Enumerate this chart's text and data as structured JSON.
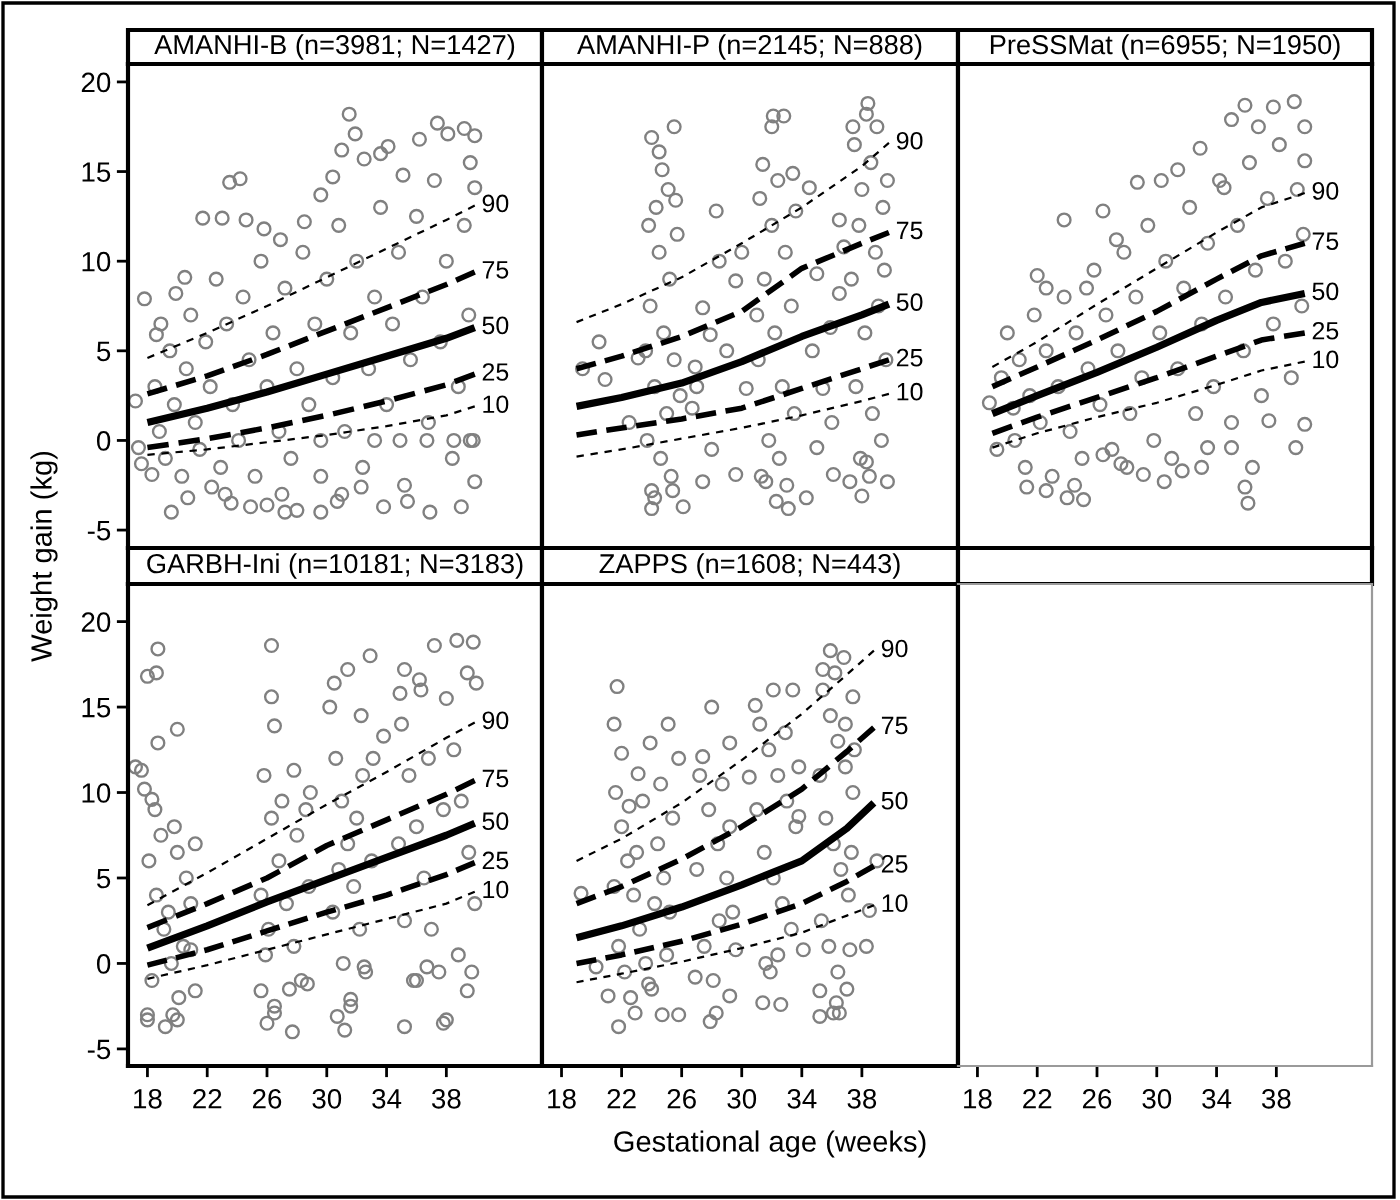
{
  "chart_data": [
    {
      "type": "scatter",
      "title": "AMANHI-B (n=3981; N=1427)",
      "ylabel": "Weight gain (kg)",
      "xlim": [
        16.7,
        44.4
      ],
      "ylim": [
        -6,
        21
      ],
      "xticks": [
        18,
        22,
        26,
        30,
        34,
        38
      ],
      "yticks": [
        -5,
        0,
        5,
        10,
        15,
        20
      ],
      "tick_labels": "y",
      "series": [
        {
          "type": "scatter",
          "color": "#808080",
          "marker": "circle",
          "x": [
            17.2,
            17.4,
            17.6,
            17.8,
            18.3,
            18.6,
            18.9,
            19.6,
            19.9,
            20.5,
            20.7,
            21.7,
            22.3,
            23.0,
            23.2,
            23.5,
            23.6,
            24.2,
            24.6,
            24.9,
            25.8,
            26.0,
            26.9,
            27.2,
            28.0,
            28.5,
            29.6,
            29.6,
            29.6,
            30.4,
            30.7,
            31.0,
            31.5,
            31.9,
            32.3,
            32.5,
            33.2,
            33.6,
            33.8,
            34.1,
            34.9,
            35.1,
            35.4,
            36.2,
            36.7,
            36.9,
            37.4,
            38.1,
            38.5,
            39.0,
            39.2,
            39.6,
            39.9,
            39.9,
            39.9,
            18.5,
            18.8,
            19.2,
            19.5,
            19.8,
            20.3,
            20.6,
            20.9,
            21.2,
            21.5,
            21.9,
            22.2,
            22.6,
            22.9,
            23.3,
            23.7,
            24.1,
            24.4,
            24.8,
            25.2,
            25.6,
            26.0,
            26.4,
            26.8,
            27.2,
            27.6,
            28.0,
            28.4,
            28.8,
            29.2,
            29.6,
            30.0,
            30.4,
            30.8,
            31.2,
            31.6,
            32.0,
            32.4,
            32.8,
            33.2,
            33.6,
            34.0,
            34.4,
            34.8,
            35.2,
            35.6,
            36.0,
            36.4,
            36.8,
            37.2,
            37.6,
            38.0,
            38.4,
            38.8,
            39.2,
            39.5,
            39.8,
            39.6,
            31.0,
            27.0
          ],
          "values": [
            2.2,
            -0.4,
            -1.3,
            7.9,
            -1.9,
            5.9,
            6.5,
            -4.0,
            8.2,
            9.1,
            -3.2,
            12.4,
            -2.6,
            12.4,
            -3.0,
            14.4,
            -3.5,
            14.6,
            12.3,
            -3.7,
            11.8,
            -3.6,
            11.2,
            -4.0,
            -3.9,
            12.2,
            13.7,
            -4.0,
            0,
            14.7,
            -3.4,
            16.2,
            18.2,
            17.1,
            -2.6,
            15.7,
            0,
            16.0,
            -3.7,
            16.4,
            0,
            14.8,
            -3.4,
            16.8,
            0,
            -4.0,
            17.7,
            17.1,
            0,
            -3.7,
            17.4,
            0,
            17.0,
            14.1,
            -2.3,
            3.0,
            0.5,
            -1.0,
            5.0,
            2.0,
            -2.0,
            4.0,
            7.0,
            1.0,
            -0.5,
            5.5,
            3.0,
            9.0,
            -1.5,
            6.5,
            2.0,
            0.0,
            8.0,
            4.5,
            -2.0,
            10.0,
            3.0,
            6.0,
            0.5,
            8.5,
            -1.0,
            4.0,
            10.5,
            2.0,
            6.5,
            -2.0,
            9.0,
            3.5,
            12.0,
            0.5,
            6.0,
            10.0,
            -1.5,
            4.0,
            8.0,
            13.0,
            2.0,
            6.5,
            10.5,
            -2.5,
            4.5,
            12.5,
            8.0,
            1.0,
            14.5,
            5.5,
            10.0,
            -1.0,
            3.0,
            12.0,
            7.0,
            0.0,
            15.5,
            -3.0,
            -3.0
          ]
        },
        {
          "type": "line",
          "name": "90",
          "color": "#000000",
          "line_style": "dotted",
          "x": [
            18,
            22,
            26,
            30,
            34,
            38,
            39.9
          ],
          "values": [
            4.6,
            6.0,
            7.5,
            9.1,
            10.7,
            12.3,
            13.1
          ]
        },
        {
          "type": "line",
          "name": "75",
          "color": "#000000",
          "line_style": "dashed",
          "x": [
            18,
            22,
            26,
            30,
            34,
            38,
            39.9
          ],
          "values": [
            2.6,
            3.6,
            4.8,
            6.1,
            7.4,
            8.7,
            9.4
          ]
        },
        {
          "type": "line",
          "name": "50",
          "color": "#000000",
          "line_style": "solid",
          "x": [
            18,
            22,
            26,
            30,
            34,
            38,
            39.9
          ],
          "values": [
            1.0,
            1.8,
            2.7,
            3.7,
            4.7,
            5.7,
            6.3
          ]
        },
        {
          "type": "line",
          "name": "25",
          "color": "#000000",
          "line_style": "dashed",
          "x": [
            18,
            22,
            26,
            30,
            34,
            38,
            39.9
          ],
          "values": [
            -0.4,
            0.1,
            0.7,
            1.4,
            2.2,
            3.1,
            3.7
          ]
        },
        {
          "type": "line",
          "name": "10",
          "color": "#000000",
          "line_style": "dotted",
          "x": [
            18,
            22,
            26,
            30,
            34,
            38,
            39.9
          ],
          "values": [
            -0.8,
            -0.5,
            -0.1,
            0.3,
            0.8,
            1.4,
            1.9
          ]
        }
      ]
    },
    {
      "type": "scatter",
      "title": "AMANHI-P (n=2145; N=888)",
      "xlim": [
        16.7,
        44.4
      ],
      "ylim": [
        -6,
        21
      ],
      "xticks": [
        18,
        22,
        26,
        30,
        34,
        38
      ],
      "yticks": [
        -5,
        0,
        5,
        10,
        15,
        20
      ],
      "tick_labels": false,
      "series": [
        {
          "type": "scatter",
          "color": "#808080",
          "marker": "circle",
          "x": [
            19.4,
            20.9,
            23.1,
            24.0,
            24.5,
            24.7,
            25.1,
            25.5,
            25.6,
            24.0,
            24.2,
            25.4,
            26.1,
            28.3,
            28.5,
            29.6,
            27.4,
            26.9,
            26.7,
            27.4,
            29.6,
            30.3,
            27.9,
            32.1,
            32.8,
            32.0,
            31.4,
            33.4,
            32.3,
            33.1,
            34.3,
            31.6,
            35.0,
            35.9,
            36.5,
            35.4,
            36.1,
            35.0,
            36.5,
            34.5,
            38.4,
            38.3,
            37.4,
            39.0,
            39.7,
            38.0,
            39.7,
            37.2,
            38.3,
            23.8,
            24.5,
            25.2,
            23.9,
            24.8,
            25.5,
            24.2,
            25.0,
            23.7,
            24.6,
            25.3,
            24.0,
            25.7,
            24.3,
            25.9,
            23.6,
            31.2,
            32.0,
            32.9,
            31.5,
            33.3,
            32.2,
            31.1,
            32.7,
            33.5,
            31.8,
            32.5,
            31.3,
            33.0,
            32.4,
            33.6,
            31.0,
            37.5,
            38.6,
            39.4,
            37.8,
            38.9,
            37.3,
            39.1,
            38.2,
            39.6,
            37.6,
            38.7,
            39.3,
            37.9,
            38.5,
            38.0,
            39.5,
            27.0,
            28.0,
            29.0,
            30.0,
            34.7,
            36.0,
            36.8,
            20.5,
            22.5
          ],
          "values": [
            4.0,
            3.4,
            4.6,
            16.9,
            16.1,
            15.1,
            14.0,
            17.5,
            13.4,
            -3.8,
            -3.2,
            -2.8,
            -3.7,
            12.8,
            10.0,
            8.9,
            7.4,
            4.1,
            1.8,
            -2.3,
            -1.9,
            2.9,
            5.9,
            18.1,
            18.1,
            17.5,
            15.4,
            14.9,
            -3.4,
            -3.8,
            -3.2,
            -2.3,
            9.3,
            6.3,
            8.2,
            2.9,
            -1.9,
            -0.4,
            12.3,
            14.1,
            18.8,
            18.2,
            17.5,
            17.5,
            14.5,
            -3.1,
            -2.3,
            -2.3,
            -1.2,
            12.0,
            10.5,
            9.0,
            7.5,
            6.0,
            4.5,
            3.0,
            1.5,
            0.0,
            -1.0,
            -2.0,
            -2.8,
            11.5,
            13.0,
            2.5,
            5.0,
            13.5,
            12.0,
            10.5,
            9.0,
            7.5,
            6.0,
            4.5,
            3.0,
            1.5,
            0.0,
            -1.0,
            -2.0,
            -2.5,
            14.5,
            12.8,
            7.0,
            16.5,
            15.5,
            13.0,
            12.0,
            10.5,
            9.0,
            7.5,
            6.0,
            4.5,
            3.0,
            1.5,
            0.0,
            -1.0,
            -2.0,
            14.0,
            9.5,
            3.0,
            -0.5,
            5.0,
            10.5,
            5.0,
            1.0,
            10.8,
            5.5,
            1.0
          ]
        },
        {
          "type": "line",
          "name": "90",
          "color": "#000000",
          "line_style": "dotted",
          "x": [
            19,
            22,
            26,
            30,
            34,
            38,
            39.8
          ],
          "values": [
            6.6,
            7.6,
            9.1,
            11.0,
            13.0,
            15.3,
            16.6
          ]
        },
        {
          "type": "line",
          "name": "75",
          "color": "#000000",
          "line_style": "dashed",
          "x": [
            19,
            22,
            26,
            30,
            34,
            38,
            39.8
          ],
          "values": [
            4.0,
            4.7,
            5.8,
            7.2,
            9.6,
            11.0,
            11.6
          ]
        },
        {
          "type": "line",
          "name": "50",
          "color": "#000000",
          "line_style": "solid",
          "x": [
            19,
            22,
            26,
            30,
            34,
            38,
            39.8
          ],
          "values": [
            1.9,
            2.4,
            3.2,
            4.4,
            5.8,
            7.0,
            7.6
          ]
        },
        {
          "type": "line",
          "name": "25",
          "color": "#000000",
          "line_style": "dashed",
          "x": [
            19,
            22,
            26,
            30,
            34,
            38,
            39.8
          ],
          "values": [
            0.3,
            0.7,
            1.2,
            1.8,
            2.9,
            4.0,
            4.5
          ]
        },
        {
          "type": "line",
          "name": "10",
          "color": "#000000",
          "line_style": "dotted",
          "x": [
            19,
            22,
            26,
            30,
            34,
            38,
            39.8
          ],
          "values": [
            -0.9,
            -0.5,
            0.1,
            0.7,
            1.4,
            2.2,
            2.6
          ]
        }
      ]
    },
    {
      "type": "scatter",
      "title": "PreSSMat (n=6955; N=1950)",
      "xlim": [
        16.7,
        44.4
      ],
      "ylim": [
        -6,
        21
      ],
      "xticks": [
        18,
        22,
        26,
        30,
        34,
        38
      ],
      "yticks": [
        -5,
        0,
        5,
        10,
        15,
        20
      ],
      "tick_labels": false,
      "series": [
        {
          "type": "scatter",
          "color": "#808080",
          "marker": "circle",
          "x": [
            18.8,
            20.4,
            22.0,
            22.6,
            23.8,
            25.3,
            26.4,
            27.3,
            28.7,
            30.3,
            31.4,
            32.9,
            34.5,
            35.0,
            35.9,
            36.8,
            37.8,
            39.2,
            39.9,
            39.9,
            21.3,
            22.6,
            24.0,
            25.1,
            26.4,
            27.6,
            29.1,
            30.5,
            31.7,
            33.4,
            35.0,
            35.9,
            36.1,
            37.5,
            39.3,
            39.9,
            19.3,
            19.6,
            20.0,
            20.5,
            20.8,
            21.2,
            21.5,
            21.8,
            22.2,
            22.6,
            23.0,
            23.4,
            23.8,
            24.2,
            24.6,
            25.0,
            25.4,
            25.8,
            26.2,
            26.6,
            27.0,
            27.4,
            27.8,
            28.2,
            28.6,
            29.0,
            29.4,
            29.8,
            30.2,
            30.6,
            31.0,
            31.4,
            31.8,
            32.2,
            32.6,
            33.0,
            33.4,
            33.8,
            34.2,
            34.6,
            35.0,
            35.4,
            35.8,
            36.2,
            36.6,
            37.0,
            37.4,
            37.8,
            38.2,
            38.6,
            39.0,
            39.4,
            39.7,
            39.8,
            36.4,
            33.0,
            28.0,
            24.5
          ],
          "values": [
            2.1,
            1.8,
            9.2,
            8.5,
            12.3,
            8.5,
            12.8,
            11.2,
            14.4,
            14.5,
            15.1,
            16.3,
            14.1,
            17.9,
            18.7,
            17.5,
            18.6,
            18.9,
            17.5,
            15.6,
            -2.6,
            -2.8,
            -3.2,
            -3.3,
            -0.8,
            -1.3,
            -1.9,
            -2.3,
            -1.7,
            -0.4,
            -0.4,
            -2.6,
            -3.5,
            1.1,
            -0.4,
            0.9,
            -0.5,
            3.5,
            6.0,
            0.0,
            4.5,
            -1.5,
            2.5,
            7.0,
            1.0,
            5.0,
            -2.0,
            3.0,
            8.0,
            0.5,
            6.0,
            -1.0,
            4.0,
            9.5,
            2.0,
            7.0,
            -0.5,
            5.0,
            10.5,
            1.5,
            8.0,
            3.5,
            12.0,
            0.0,
            6.0,
            10.0,
            -1.0,
            4.0,
            8.5,
            13.0,
            1.5,
            6.5,
            11.0,
            3.0,
            14.5,
            8.0,
            1.0,
            12.0,
            5.0,
            15.5,
            9.5,
            2.5,
            13.5,
            6.5,
            16.5,
            10.0,
            3.5,
            14.0,
            7.5,
            11.5,
            -1.5,
            -1.5,
            -1.5,
            -2.5
          ]
        },
        {
          "type": "line",
          "name": "90",
          "color": "#000000",
          "line_style": "dotted",
          "x": [
            19,
            22,
            26,
            30,
            34,
            37,
            39.9
          ],
          "values": [
            4.1,
            5.5,
            7.6,
            9.6,
            11.6,
            13.0,
            13.8
          ]
        },
        {
          "type": "line",
          "name": "75",
          "color": "#000000",
          "line_style": "dashed",
          "x": [
            19,
            22,
            26,
            30,
            34,
            37,
            39.9
          ],
          "values": [
            3.0,
            4.1,
            5.6,
            7.2,
            9.0,
            10.3,
            11.0
          ]
        },
        {
          "type": "line",
          "name": "50",
          "color": "#000000",
          "line_style": "solid",
          "x": [
            19,
            22,
            26,
            30,
            34,
            37,
            39.9
          ],
          "values": [
            1.5,
            2.5,
            3.8,
            5.2,
            6.7,
            7.7,
            8.2
          ]
        },
        {
          "type": "line",
          "name": "25",
          "color": "#000000",
          "line_style": "dashed",
          "x": [
            19,
            22,
            26,
            30,
            34,
            37,
            39.9
          ],
          "values": [
            0.4,
            1.3,
            2.4,
            3.5,
            4.7,
            5.6,
            6.0
          ]
        },
        {
          "type": "line",
          "name": "10",
          "color": "#000000",
          "line_style": "dotted",
          "x": [
            19,
            22,
            26,
            30,
            34,
            37,
            39.9
          ],
          "values": [
            -0.4,
            0.4,
            1.3,
            2.1,
            3.1,
            3.9,
            4.4
          ]
        }
      ]
    },
    {
      "type": "scatter",
      "title": "GARBH-Ini (n=10181; N=3183)",
      "xlim": [
        16.7,
        44.4
      ],
      "ylim": [
        -6,
        22.2
      ],
      "xticks": [
        18,
        22,
        26,
        30,
        34,
        38
      ],
      "yticks": [
        -5,
        0,
        5,
        10,
        15,
        20
      ],
      "series": [
        {
          "type": "scatter",
          "color": "#808080",
          "marker": "circle",
          "x": [
            18.7,
            18.0,
            18.6,
            20.0,
            18.7,
            17.6,
            17.2,
            17.8,
            18.3,
            19.8,
            21.2,
            18.0,
            19.2,
            20.0,
            21.2,
            20.9,
            26.3,
            26.3,
            26.5,
            27.8,
            28.9,
            26.0,
            26.5,
            27.7,
            28.7,
            25.6,
            31.4,
            32.9,
            30.5,
            32.3,
            33.8,
            30.7,
            31.2,
            31.6,
            32.5,
            37.2,
            38.7,
            39.8,
            35.2,
            34.9,
            36.2,
            40.0,
            35.2,
            37.8,
            38.0,
            39.4,
            36.0,
            36.7,
            18.1,
            18.6,
            19.1,
            19.6,
            20.1,
            20.6,
            18.3,
            18.9,
            19.4,
            20.4,
            20.9,
            18.0,
            19.7,
            18.5,
            20.0,
            25.8,
            26.3,
            26.8,
            27.3,
            27.8,
            28.3,
            28.8,
            25.9,
            26.5,
            27.0,
            28.0,
            28.6,
            25.6,
            27.5,
            26.1,
            30.2,
            30.6,
            31.0,
            31.4,
            31.8,
            32.2,
            32.6,
            33.0,
            30.4,
            31.1,
            31.6,
            32.4,
            30.8,
            32.0,
            33.1,
            35.0,
            35.5,
            36.0,
            36.5,
            37.0,
            37.5,
            38.0,
            38.5,
            39.0,
            39.5,
            39.9,
            35.2,
            35.8,
            36.8,
            37.8,
            38.8,
            39.4,
            34.8,
            36.3,
            39.7
          ],
          "values": [
            18.4,
            16.8,
            17.0,
            13.7,
            12.9,
            11.3,
            11.5,
            10.2,
            9.6,
            8.0,
            7.0,
            -3.3,
            -3.7,
            -3.3,
            -1.6,
            0.8,
            18.6,
            15.6,
            13.9,
            11.3,
            10.0,
            -3.5,
            -2.9,
            -4.0,
            -1.2,
            -1.6,
            17.2,
            18.0,
            16.4,
            14.5,
            13.3,
            -3.1,
            -3.9,
            -2.1,
            -0.2,
            18.6,
            18.9,
            18.8,
            17.2,
            15.8,
            16.6,
            16.4,
            -3.7,
            -3.5,
            -3.3,
            -1.6,
            -1.0,
            -0.2,
            6.0,
            4.0,
            2.0,
            0.0,
            -2.0,
            5.0,
            -1.0,
            7.5,
            3.0,
            1.0,
            3.5,
            -3.0,
            -3.0,
            9.0,
            6.5,
            11.0,
            8.5,
            6.0,
            3.5,
            1.0,
            -1.0,
            4.5,
            0.5,
            -2.5,
            9.5,
            7.5,
            9.0,
            4.0,
            -1.5,
            2.0,
            15.0,
            12.0,
            9.5,
            7.0,
            4.5,
            2.0,
            -0.5,
            6.0,
            3.0,
            0.0,
            -2.5,
            11.0,
            5.5,
            8.5,
            12.0,
            14.0,
            11.0,
            8.0,
            5.0,
            2.0,
            -0.5,
            15.5,
            12.5,
            9.5,
            6.5,
            3.5,
            2.5,
            -1.0,
            12.0,
            9.0,
            0.5,
            17.0,
            7.0,
            16.0,
            -0.5
          ]
        },
        {
          "type": "line",
          "name": "90",
          "color": "#000000",
          "line_style": "dotted",
          "x": [
            18,
            22,
            26,
            30,
            34,
            38,
            39.9
          ],
          "values": [
            3.4,
            5.3,
            7.3,
            9.3,
            11.2,
            13.2,
            14.1
          ]
        },
        {
          "type": "line",
          "name": "75",
          "color": "#000000",
          "line_style": "dashed",
          "x": [
            18,
            22,
            26,
            30,
            34,
            38,
            39.9
          ],
          "values": [
            2.1,
            3.5,
            5.0,
            6.9,
            8.4,
            9.9,
            10.7
          ]
        },
        {
          "type": "line",
          "name": "50",
          "color": "#000000",
          "line_style": "solid",
          "x": [
            18,
            22,
            26,
            30,
            34,
            38,
            39.9
          ],
          "values": [
            0.9,
            2.2,
            3.6,
            4.9,
            6.2,
            7.5,
            8.2
          ]
        },
        {
          "type": "line",
          "name": "25",
          "color": "#000000",
          "line_style": "dashed",
          "x": [
            18,
            22,
            26,
            30,
            34,
            38,
            39.9
          ],
          "values": [
            -0.1,
            0.8,
            1.9,
            3.0,
            4.0,
            5.2,
            5.9
          ]
        },
        {
          "type": "line",
          "name": "10",
          "color": "#000000",
          "line_style": "dotted",
          "x": [
            18,
            22,
            26,
            30,
            34,
            38,
            39.9
          ],
          "values": [
            -0.9,
            -0.1,
            0.8,
            1.7,
            2.6,
            3.5,
            4.2
          ]
        }
      ]
    },
    {
      "type": "scatter",
      "title": "ZAPPS (n=1608; N=443)",
      "xlabel": "Gestational age (weeks)",
      "xlim": [
        16.7,
        44.4
      ],
      "ylim": [
        -6,
        22.2
      ],
      "xticks": [
        18,
        22,
        26,
        30,
        34,
        38
      ],
      "yticks": [
        -5,
        0,
        5,
        10,
        15,
        20
      ],
      "tick_labels": "x",
      "series": [
        {
          "type": "scatter",
          "color": "#808080",
          "marker": "circle",
          "x": [
            19.3,
            20.3,
            21.7,
            21.5,
            25.1,
            23.9,
            22.0,
            23.1,
            22.5,
            21.8,
            22.9,
            24.7,
            25.8,
            21.1,
            23.8,
            28.0,
            25.8,
            27.4,
            29.2,
            29.2,
            27.9,
            28.3,
            26.9,
            29.6,
            32.1,
            33.4,
            30.9,
            30.5,
            31.4,
            32.6,
            31.6,
            34.1,
            33.8,
            35.9,
            36.8,
            35.4,
            37.4,
            36.9,
            35.2,
            36.1,
            36.5,
            35.2,
            36.3,
            37.2,
            38.3,
            38.5,
            39.0,
            21.6,
            22.0,
            22.4,
            22.8,
            23.2,
            23.6,
            24.0,
            24.4,
            24.8,
            25.2,
            21.8,
            22.6,
            23.4,
            24.6,
            25.0,
            21.5,
            23.0,
            24.2,
            22.2,
            25.4,
            27.2,
            27.8,
            28.4,
            29.0,
            29.4,
            27.5,
            28.1,
            28.7,
            27.0,
            29.2,
            28.5,
            31.2,
            31.8,
            32.4,
            33.0,
            33.6,
            31.5,
            32.1,
            32.7,
            33.3,
            31.9,
            32.9,
            31.0,
            33.8,
            32.4,
            35.4,
            35.9,
            36.4,
            36.9,
            37.4,
            35.6,
            36.1,
            36.6,
            37.1,
            35.3,
            35.8,
            36.4,
            37.0,
            37.5,
            35.2,
            36.2,
            37.3
          ],
          "values": [
            4.1,
            -0.2,
            16.2,
            14.0,
            14.0,
            12.9,
            12.3,
            11.1,
            9.2,
            -3.7,
            -2.9,
            -3.0,
            -3.0,
            -1.9,
            -1.2,
            15.0,
            12.0,
            12.1,
            12.9,
            -1.9,
            -3.4,
            -2.9,
            -0.8,
            0.8,
            16.0,
            16.0,
            15.1,
            10.9,
            -2.3,
            -2.4,
            0.0,
            0.8,
            8.6,
            18.3,
            17.9,
            17.2,
            15.6,
            14.0,
            -3.1,
            -2.9,
            -2.9,
            -1.6,
            -2.3,
            0.8,
            1.0,
            3.1,
            6.0,
            10.0,
            8.0,
            6.0,
            4.0,
            2.0,
            0.0,
            -1.5,
            7.0,
            5.0,
            3.0,
            1.0,
            -2.0,
            9.5,
            10.5,
            0.5,
            4.5,
            6.5,
            3.5,
            -0.5,
            8.5,
            11.0,
            9.0,
            7.0,
            5.0,
            3.0,
            1.0,
            -1.0,
            10.5,
            5.5,
            8.0,
            2.5,
            14.0,
            12.5,
            11.0,
            9.5,
            8.0,
            6.5,
            5.0,
            3.5,
            2.0,
            -0.5,
            13.5,
            9.0,
            11.5,
            0.5,
            16.0,
            14.5,
            13.0,
            11.5,
            10.0,
            8.5,
            7.0,
            5.5,
            4.0,
            2.5,
            1.0,
            -0.5,
            -1.5,
            12.5,
            11.0,
            17.0,
            6.5
          ]
        },
        {
          "type": "line",
          "name": "90",
          "color": "#000000",
          "line_style": "dotted",
          "x": [
            19,
            22,
            26,
            30,
            34,
            37,
            38.8
          ],
          "values": [
            6.0,
            7.3,
            9.4,
            11.9,
            14.6,
            16.9,
            18.3
          ]
        },
        {
          "type": "line",
          "name": "75",
          "color": "#000000",
          "line_style": "dashed",
          "x": [
            19,
            22,
            26,
            30,
            34,
            37,
            38.8
          ],
          "values": [
            3.5,
            4.5,
            6.1,
            8.0,
            10.2,
            12.4,
            13.8
          ]
        },
        {
          "type": "line",
          "name": "50",
          "color": "#000000",
          "line_style": "solid",
          "x": [
            19,
            22,
            26,
            30,
            34,
            37,
            38.8
          ],
          "values": [
            1.5,
            2.2,
            3.3,
            4.6,
            6.0,
            7.9,
            9.4
          ]
        },
        {
          "type": "line",
          "name": "25",
          "color": "#000000",
          "line_style": "dashed",
          "x": [
            19,
            22,
            26,
            30,
            34,
            37,
            38.8
          ],
          "values": [
            0.0,
            0.5,
            1.3,
            2.3,
            3.5,
            4.8,
            5.7
          ]
        },
        {
          "type": "line",
          "name": "10",
          "color": "#000000",
          "line_style": "dotted",
          "x": [
            19,
            22,
            26,
            30,
            34,
            37,
            38.8
          ],
          "values": [
            -1.1,
            -0.6,
            0.1,
            0.9,
            1.8,
            2.8,
            3.4
          ]
        }
      ]
    },
    {
      "type": "scatter",
      "xlim": [
        16.7,
        44.4
      ],
      "ylim": [
        -6,
        22.2
      ],
      "xticks": [
        18,
        22,
        26,
        30,
        34,
        38
      ],
      "yticks": [
        -5,
        0,
        5,
        10,
        15,
        20
      ],
      "tick_labels": "x"
    }
  ]
}
